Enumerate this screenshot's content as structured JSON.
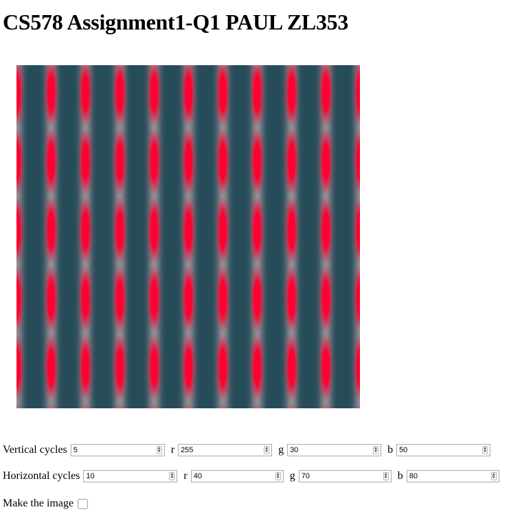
{
  "page": {
    "title": "CS578 Assignment1-Q1 PAUL ZL353"
  },
  "canvas": {
    "vertical_cycles": 5,
    "horizontal_cycles": 10,
    "colors": {
      "background": "#264c5a",
      "stripe_highlight": "#ff0030",
      "glow": "#c8b4b4"
    }
  },
  "controls": {
    "vertical": {
      "label": "Vertical cycles",
      "cycles": "5",
      "r_label": "r",
      "r": "255",
      "g_label": "g",
      "g": "30",
      "b_label": "b",
      "b": "50"
    },
    "horizontal": {
      "label": "Horizontal cycles",
      "cycles": "10",
      "r_label": "r",
      "r": "40",
      "g_label": "g",
      "g": "70",
      "b_label": "b",
      "b": "80"
    },
    "make": {
      "label": "Make the image",
      "checked": false
    }
  }
}
